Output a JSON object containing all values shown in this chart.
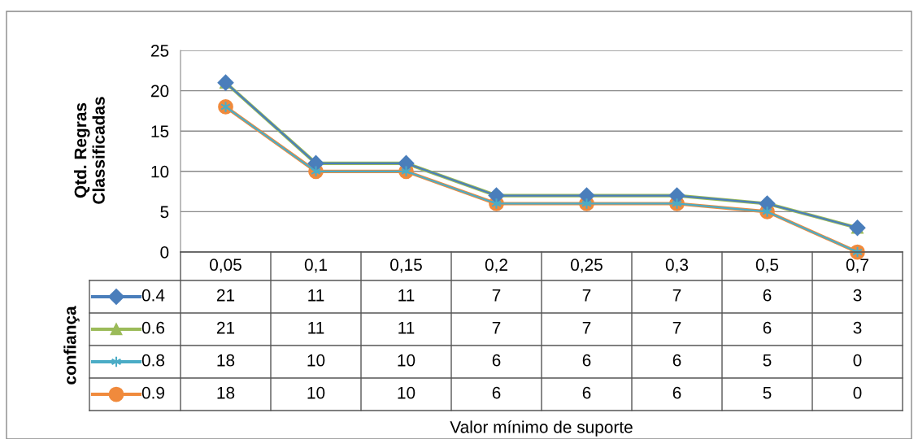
{
  "chart_data": {
    "type": "line",
    "ylabel": "Qtd. Regras\nClassificadas",
    "annotations": [
      "Valor mínimo de suporte"
    ],
    "legend_title": "confiança",
    "categories": [
      "0,05",
      "0,1",
      "0,15",
      "0,2",
      "0,25",
      "0,3",
      "0,5",
      "0,7"
    ],
    "series": [
      {
        "name": "0.4",
        "color": "#4a7ebb",
        "marker": "diamond",
        "values": [
          21,
          11,
          11,
          7,
          7,
          7,
          6,
          3
        ]
      },
      {
        "name": "0.6",
        "color": "#9bbb59",
        "marker": "triangle",
        "values": [
          21,
          11,
          11,
          7,
          7,
          7,
          6,
          3
        ]
      },
      {
        "name": "0.8",
        "color": "#4bacc6",
        "marker": "cross",
        "values": [
          18,
          10,
          10,
          6,
          6,
          6,
          5,
          0
        ]
      },
      {
        "name": "0.9",
        "color": "#f08a3c",
        "marker": "circle",
        "values": [
          18,
          10,
          10,
          6,
          6,
          6,
          5,
          0
        ]
      }
    ],
    "ylim": [
      0,
      25
    ],
    "yticks": [
      0,
      5,
      10,
      15,
      20,
      25
    ],
    "grid": "y",
    "data_labels": true,
    "legend": "bottom left",
    "line_style": "solid"
  }
}
